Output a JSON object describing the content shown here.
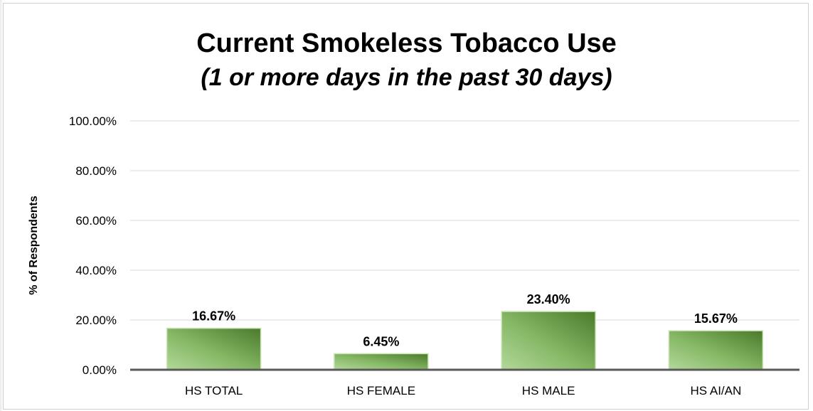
{
  "chart_data": {
    "type": "bar",
    "title": "Current Smokeless Tobacco Use",
    "subtitle": "(1 or more days in the past 30 days)",
    "xlabel": "",
    "ylabel": "% of Respondents",
    "categories": [
      "HS TOTAL",
      "HS FEMALE",
      "HS MALE",
      "HS AI/AN"
    ],
    "values": [
      16.67,
      6.45,
      23.4,
      15.67
    ],
    "data_labels": [
      "16.67%",
      "6.45%",
      "23.40%",
      "15.67%"
    ],
    "ylim": [
      0,
      100
    ],
    "yticks": [
      0,
      20,
      40,
      60,
      80,
      100
    ],
    "ytick_labels": [
      "0.00%",
      "20.00%",
      "40.00%",
      "60.00%",
      "80.00%",
      "100.00%"
    ],
    "grid": true,
    "legend": "none",
    "colors": {
      "bar_light": "#a9d18e",
      "bar_dark": "#4e7e2c",
      "bar_edge": "#c9e3b5",
      "grid": "#d9d9d9",
      "axis": "#595959"
    }
  }
}
